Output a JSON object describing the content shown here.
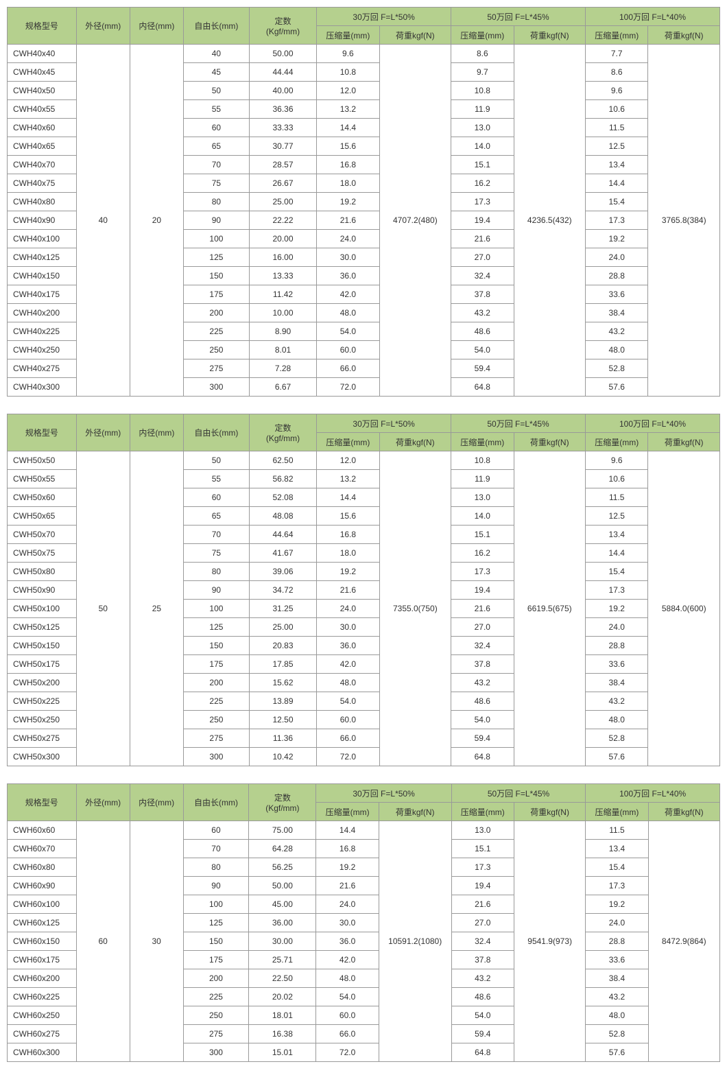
{
  "labels": {
    "model": "规格型号",
    "outer_dia": "外径(mm)",
    "inner_dia": "内径(mm)",
    "free_len": "自由长(mm)",
    "rate": "定数",
    "rate_unit": "(Kgf/mm)",
    "compression": "压缩量(mm)",
    "load": "荷重kgf(N)",
    "group30": "30万回 F=L*50%",
    "group50": "50万回 F=L*45%",
    "group100": "100万回 F=L*40%"
  },
  "tables": [
    {
      "outer_dia": "40",
      "inner_dia": "20",
      "load30": "4707.2(480)",
      "load50": "4236.5(432)",
      "load100": "3765.8(384)",
      "rows": [
        {
          "model": "CWH40x40",
          "len": "40",
          "rate": "50.00",
          "c30": "9.6",
          "c50": "8.6",
          "c100": "7.7"
        },
        {
          "model": "CWH40x45",
          "len": "45",
          "rate": "44.44",
          "c30": "10.8",
          "c50": "9.7",
          "c100": "8.6"
        },
        {
          "model": "CWH40x50",
          "len": "50",
          "rate": "40.00",
          "c30": "12.0",
          "c50": "10.8",
          "c100": "9.6"
        },
        {
          "model": "CWH40x55",
          "len": "55",
          "rate": "36.36",
          "c30": "13.2",
          "c50": "11.9",
          "c100": "10.6"
        },
        {
          "model": "CWH40x60",
          "len": "60",
          "rate": "33.33",
          "c30": "14.4",
          "c50": "13.0",
          "c100": "11.5"
        },
        {
          "model": "CWH40x65",
          "len": "65",
          "rate": "30.77",
          "c30": "15.6",
          "c50": "14.0",
          "c100": "12.5"
        },
        {
          "model": "CWH40x70",
          "len": "70",
          "rate": "28.57",
          "c30": "16.8",
          "c50": "15.1",
          "c100": "13.4"
        },
        {
          "model": "CWH40x75",
          "len": "75",
          "rate": "26.67",
          "c30": "18.0",
          "c50": "16.2",
          "c100": "14.4"
        },
        {
          "model": "CWH40x80",
          "len": "80",
          "rate": "25.00",
          "c30": "19.2",
          "c50": "17.3",
          "c100": "15.4"
        },
        {
          "model": "CWH40x90",
          "len": "90",
          "rate": "22.22",
          "c30": "21.6",
          "c50": "19.4",
          "c100": "17.3"
        },
        {
          "model": "CWH40x100",
          "len": "100",
          "rate": "20.00",
          "c30": "24.0",
          "c50": "21.6",
          "c100": "19.2"
        },
        {
          "model": "CWH40x125",
          "len": "125",
          "rate": "16.00",
          "c30": "30.0",
          "c50": "27.0",
          "c100": "24.0"
        },
        {
          "model": "CWH40x150",
          "len": "150",
          "rate": "13.33",
          "c30": "36.0",
          "c50": "32.4",
          "c100": "28.8"
        },
        {
          "model": "CWH40x175",
          "len": "175",
          "rate": "11.42",
          "c30": "42.0",
          "c50": "37.8",
          "c100": "33.6"
        },
        {
          "model": "CWH40x200",
          "len": "200",
          "rate": "10.00",
          "c30": "48.0",
          "c50": "43.2",
          "c100": "38.4"
        },
        {
          "model": "CWH40x225",
          "len": "225",
          "rate": "8.90",
          "c30": "54.0",
          "c50": "48.6",
          "c100": "43.2"
        },
        {
          "model": "CWH40x250",
          "len": "250",
          "rate": "8.01",
          "c30": "60.0",
          "c50": "54.0",
          "c100": "48.0"
        },
        {
          "model": "CWH40x275",
          "len": "275",
          "rate": "7.28",
          "c30": "66.0",
          "c50": "59.4",
          "c100": "52.8"
        },
        {
          "model": "CWH40x300",
          "len": "300",
          "rate": "6.67",
          "c30": "72.0",
          "c50": "64.8",
          "c100": "57.6"
        }
      ]
    },
    {
      "outer_dia": "50",
      "inner_dia": "25",
      "load30": "7355.0(750)",
      "load50": "6619.5(675)",
      "load100": "5884.0(600)",
      "rows": [
        {
          "model": "CWH50x50",
          "len": "50",
          "rate": "62.50",
          "c30": "12.0",
          "c50": "10.8",
          "c100": "9.6"
        },
        {
          "model": "CWH50x55",
          "len": "55",
          "rate": "56.82",
          "c30": "13.2",
          "c50": "11.9",
          "c100": "10.6"
        },
        {
          "model": "CWH50x60",
          "len": "60",
          "rate": "52.08",
          "c30": "14.4",
          "c50": "13.0",
          "c100": "11.5"
        },
        {
          "model": "CWH50x65",
          "len": "65",
          "rate": "48.08",
          "c30": "15.6",
          "c50": "14.0",
          "c100": "12.5"
        },
        {
          "model": "CWH50x70",
          "len": "70",
          "rate": "44.64",
          "c30": "16.8",
          "c50": "15.1",
          "c100": "13.4"
        },
        {
          "model": "CWH50x75",
          "len": "75",
          "rate": "41.67",
          "c30": "18.0",
          "c50": "16.2",
          "c100": "14.4"
        },
        {
          "model": "CWH50x80",
          "len": "80",
          "rate": "39.06",
          "c30": "19.2",
          "c50": "17.3",
          "c100": "15.4"
        },
        {
          "model": "CWH50x90",
          "len": "90",
          "rate": "34.72",
          "c30": "21.6",
          "c50": "19.4",
          "c100": "17.3"
        },
        {
          "model": "CWH50x100",
          "len": "100",
          "rate": "31.25",
          "c30": "24.0",
          "c50": "21.6",
          "c100": "19.2"
        },
        {
          "model": "CWH50x125",
          "len": "125",
          "rate": "25.00",
          "c30": "30.0",
          "c50": "27.0",
          "c100": "24.0"
        },
        {
          "model": "CWH50x150",
          "len": "150",
          "rate": "20.83",
          "c30": "36.0",
          "c50": "32.4",
          "c100": "28.8"
        },
        {
          "model": "CWH50x175",
          "len": "175",
          "rate": "17.85",
          "c30": "42.0",
          "c50": "37.8",
          "c100": "33.6"
        },
        {
          "model": "CWH50x200",
          "len": "200",
          "rate": "15.62",
          "c30": "48.0",
          "c50": "43.2",
          "c100": "38.4"
        },
        {
          "model": "CWH50x225",
          "len": "225",
          "rate": "13.89",
          "c30": "54.0",
          "c50": "48.6",
          "c100": "43.2"
        },
        {
          "model": "CWH50x250",
          "len": "250",
          "rate": "12.50",
          "c30": "60.0",
          "c50": "54.0",
          "c100": "48.0"
        },
        {
          "model": "CWH50x275",
          "len": "275",
          "rate": "11.36",
          "c30": "66.0",
          "c50": "59.4",
          "c100": "52.8"
        },
        {
          "model": "CWH50x300",
          "len": "300",
          "rate": "10.42",
          "c30": "72.0",
          "c50": "64.8",
          "c100": "57.6"
        }
      ]
    },
    {
      "outer_dia": "60",
      "inner_dia": "30",
      "load30": "10591.2(1080)",
      "load50": "9541.9(973)",
      "load100": "8472.9(864)",
      "rows": [
        {
          "model": "CWH60x60",
          "len": "60",
          "rate": "75.00",
          "c30": "14.4",
          "c50": "13.0",
          "c100": "11.5"
        },
        {
          "model": "CWH60x70",
          "len": "70",
          "rate": "64.28",
          "c30": "16.8",
          "c50": "15.1",
          "c100": "13.4"
        },
        {
          "model": "CWH60x80",
          "len": "80",
          "rate": "56.25",
          "c30": "19.2",
          "c50": "17.3",
          "c100": "15.4"
        },
        {
          "model": "CWH60x90",
          "len": "90",
          "rate": "50.00",
          "c30": "21.6",
          "c50": "19.4",
          "c100": "17.3"
        },
        {
          "model": "CWH60x100",
          "len": "100",
          "rate": "45.00",
          "c30": "24.0",
          "c50": "21.6",
          "c100": "19.2"
        },
        {
          "model": "CWH60x125",
          "len": "125",
          "rate": "36.00",
          "c30": "30.0",
          "c50": "27.0",
          "c100": "24.0"
        },
        {
          "model": "CWH60x150",
          "len": "150",
          "rate": "30.00",
          "c30": "36.0",
          "c50": "32.4",
          "c100": "28.8"
        },
        {
          "model": "CWH60x175",
          "len": "175",
          "rate": "25.71",
          "c30": "42.0",
          "c50": "37.8",
          "c100": "33.6"
        },
        {
          "model": "CWH60x200",
          "len": "200",
          "rate": "22.50",
          "c30": "48.0",
          "c50": "43.2",
          "c100": "38.4"
        },
        {
          "model": "CWH60x225",
          "len": "225",
          "rate": "20.02",
          "c30": "54.0",
          "c50": "48.6",
          "c100": "43.2"
        },
        {
          "model": "CWH60x250",
          "len": "250",
          "rate": "18.01",
          "c30": "60.0",
          "c50": "54.0",
          "c100": "48.0"
        },
        {
          "model": "CWH60x275",
          "len": "275",
          "rate": "16.38",
          "c30": "66.0",
          "c50": "59.4",
          "c100": "52.8"
        },
        {
          "model": "CWH60x300",
          "len": "300",
          "rate": "15.01",
          "c30": "72.0",
          "c50": "64.8",
          "c100": "57.6"
        }
      ]
    }
  ]
}
